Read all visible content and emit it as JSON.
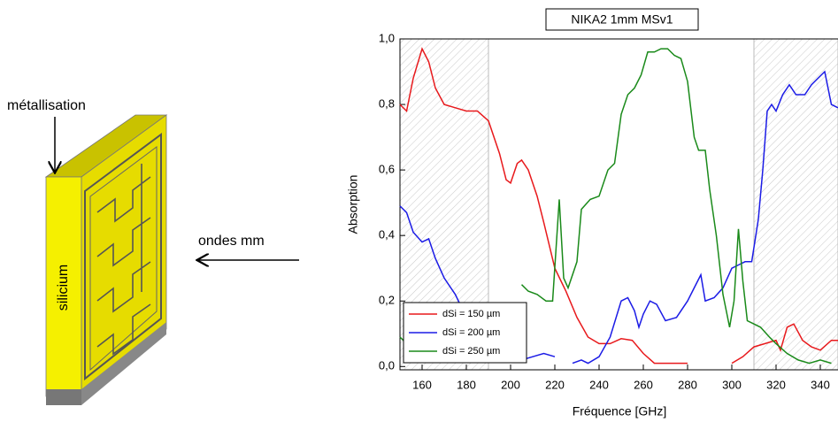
{
  "diagram": {
    "label_metal": "métallisation",
    "label_waves": "ondes mm",
    "label_silicon": "silicium"
  },
  "chart_data": {
    "type": "line",
    "title": "NIKA2 1mm MSv1",
    "x_label": "Fréquence [GHz]",
    "y_label": "Absorption",
    "xlim": [
      150,
      348
    ],
    "ylim": [
      -0.01,
      1.0
    ],
    "xticks": [
      160,
      180,
      200,
      220,
      240,
      260,
      280,
      300,
      320,
      340
    ],
    "yticks": [
      {
        "value": 0,
        "label": "0,0"
      },
      {
        "value": 0.2,
        "label": "0,2"
      },
      {
        "value": 0.4,
        "label": "0,4"
      },
      {
        "value": 0.6,
        "label": "0,6"
      },
      {
        "value": 0.8,
        "label": "0,8"
      },
      {
        "value": 1.0,
        "label": "1,0"
      }
    ],
    "shaded_regions": [
      [
        150,
        190
      ],
      [
        310,
        348
      ]
    ],
    "series": [
      {
        "name": "dSi = 150 µm",
        "color": "#e8191c",
        "x": [
          150,
          153,
          156,
          160,
          163,
          166,
          170,
          175,
          180,
          185,
          190,
          195,
          198,
          200,
          203,
          205,
          208,
          212,
          215,
          220,
          225,
          230,
          235,
          240,
          245,
          250,
          255,
          260,
          265,
          270,
          275,
          280,
          285,
          300,
          305,
          310,
          315,
          320,
          322,
          325,
          328,
          332,
          336,
          340,
          345,
          348
        ],
        "values": [
          0.8,
          0.78,
          0.88,
          0.97,
          0.93,
          0.85,
          0.8,
          0.79,
          0.78,
          0.78,
          0.75,
          0.65,
          0.57,
          0.56,
          0.62,
          0.63,
          0.6,
          0.52,
          0.44,
          0.3,
          0.23,
          0.15,
          0.09,
          0.07,
          0.07,
          0.085,
          0.08,
          0.04,
          0.01,
          0.01,
          0.01,
          0.01,
          null,
          0.01,
          0.03,
          0.06,
          0.07,
          0.08,
          0.05,
          0.12,
          0.13,
          0.08,
          0.06,
          0.05,
          0.08,
          0.08
        ]
      },
      {
        "name": "dSi = 200 µm",
        "color": "#1b1be6",
        "x": [
          150,
          153,
          156,
          160,
          163,
          166,
          170,
          175,
          180,
          183,
          185,
          200,
          205,
          210,
          215,
          220,
          222,
          228,
          232,
          235,
          240,
          245,
          250,
          253,
          256,
          258,
          260,
          263,
          266,
          270,
          275,
          280,
          283,
          286,
          288,
          292,
          296,
          300,
          303,
          306,
          309,
          312,
          314,
          316,
          318,
          320,
          323,
          326,
          329,
          333,
          336,
          339,
          342,
          345,
          348
        ],
        "values": [
          0.49,
          0.47,
          0.41,
          0.38,
          0.39,
          0.33,
          0.27,
          0.22,
          0.15,
          0.09,
          0.05,
          null,
          0.02,
          0.03,
          0.04,
          0.03,
          null,
          0.01,
          0.02,
          0.01,
          0.03,
          0.09,
          0.2,
          0.21,
          0.17,
          0.12,
          0.16,
          0.2,
          0.19,
          0.14,
          0.15,
          0.2,
          0.24,
          0.28,
          0.2,
          0.21,
          0.24,
          0.3,
          0.31,
          0.32,
          0.32,
          0.45,
          0.6,
          0.78,
          0.8,
          0.78,
          0.83,
          0.86,
          0.83,
          0.83,
          0.86,
          0.88,
          0.9,
          0.8,
          0.79
        ]
      },
      {
        "name": "dSi = 250 µm",
        "color": "#1a8a1a",
        "x": [
          150,
          153,
          156,
          160,
          203,
          205,
          208,
          212,
          216,
          219,
          222,
          224,
          226,
          230,
          232,
          236,
          240,
          244,
          247,
          250,
          253,
          256,
          259,
          262,
          265,
          268,
          271,
          274,
          277,
          280,
          283,
          285,
          288,
          290,
          293,
          296,
          299,
          301,
          303,
          305,
          307,
          310,
          313,
          317,
          320,
          325,
          330,
          335,
          340,
          345
        ],
        "values": [
          0.09,
          0.07,
          0.04,
          0.02,
          null,
          0.25,
          0.23,
          0.22,
          0.2,
          0.2,
          0.51,
          0.27,
          0.24,
          0.32,
          0.48,
          0.51,
          0.52,
          0.6,
          0.62,
          0.77,
          0.83,
          0.85,
          0.89,
          0.96,
          0.96,
          0.97,
          0.97,
          0.95,
          0.94,
          0.87,
          0.7,
          0.66,
          0.66,
          0.54,
          0.4,
          0.22,
          0.12,
          0.2,
          0.42,
          0.26,
          0.14,
          0.13,
          0.12,
          0.09,
          0.07,
          0.04,
          0.02,
          0.01,
          0.02,
          0.01
        ]
      }
    ]
  }
}
